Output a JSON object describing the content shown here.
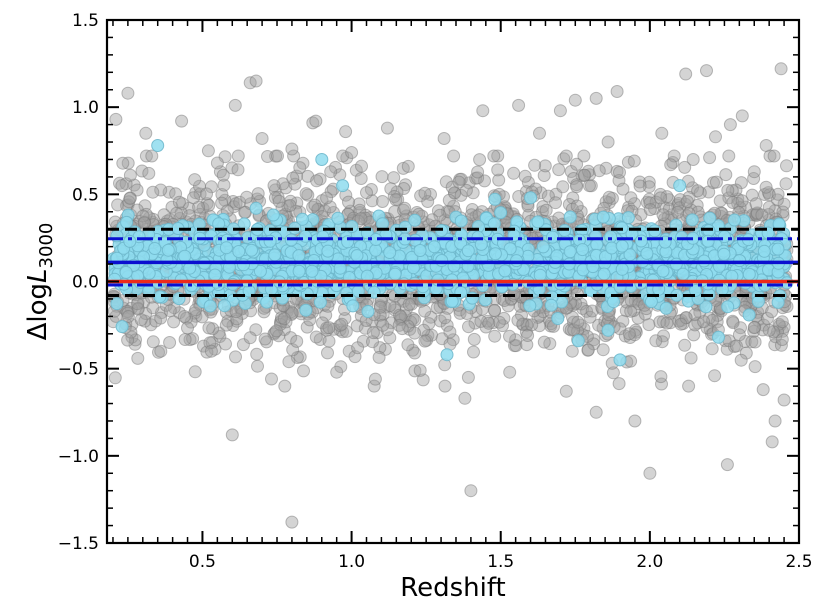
{
  "chart_data": {
    "type": "scatter",
    "title": "",
    "xlabel": "Redshift",
    "ylabel": {
      "prefix": "Δlog",
      "italic": "L",
      "subscript": "3000"
    },
    "xlim": [
      0.18,
      2.5
    ],
    "ylim": [
      -1.5,
      1.5
    ],
    "x_ticks": [
      {
        "value": 0.5,
        "label": "0.5"
      },
      {
        "value": 1.0,
        "label": "1.0"
      },
      {
        "value": 1.5,
        "label": "1.5"
      },
      {
        "value": 2.0,
        "label": "2.0"
      },
      {
        "value": 2.5,
        "label": "2.5"
      }
    ],
    "y_ticks": [
      {
        "value": -1.5,
        "label": "−1.5"
      },
      {
        "value": -1.0,
        "label": "−1.0"
      },
      {
        "value": -0.5,
        "label": "−0.5"
      },
      {
        "value": 0.0,
        "label": "0.0"
      },
      {
        "value": 0.5,
        "label": "0.5"
      },
      {
        "value": 1.0,
        "label": "1.0"
      },
      {
        "value": 1.5,
        "label": "1.5"
      }
    ],
    "grid": false,
    "legend": "none",
    "colors": {
      "all_sample": "#a0a0a0",
      "highlight_sample": "#8fdcee",
      "highlight_edge": "#6fb8cc",
      "mean_line": "#0a0fd0",
      "zero_line": "#ee2a1a",
      "dash_line": "#000000"
    },
    "series": [
      {
        "kind": "points",
        "color_key": "all_sample",
        "points": [
          [
            0.25,
            1.08
          ],
          [
            0.21,
            0.93
          ],
          [
            0.61,
            1.01
          ],
          [
            0.66,
            1.14
          ],
          [
            0.68,
            1.15
          ],
          [
            0.87,
            0.91
          ],
          [
            0.88,
            0.92
          ],
          [
            1.44,
            0.98
          ],
          [
            1.56,
            1.01
          ],
          [
            1.7,
            0.98
          ],
          [
            1.75,
            1.04
          ],
          [
            1.82,
            1.05
          ],
          [
            1.89,
            1.09
          ],
          [
            2.12,
            1.19
          ],
          [
            2.19,
            1.21
          ],
          [
            2.44,
            1.22
          ],
          [
            0.31,
            0.85
          ],
          [
            0.52,
            0.75
          ],
          [
            0.7,
            0.82
          ],
          [
            0.8,
            0.76
          ],
          [
            0.98,
            0.86
          ],
          [
            1.12,
            0.88
          ],
          [
            1.31,
            0.82
          ],
          [
            1.63,
            0.85
          ],
          [
            1.86,
            0.8
          ],
          [
            2.04,
            0.85
          ],
          [
            2.22,
            0.83
          ],
          [
            2.31,
            0.95
          ],
          [
            2.39,
            0.78
          ],
          [
            0.43,
            0.92
          ],
          [
            1.0,
            0.74
          ],
          [
            1.72,
            0.72
          ],
          [
            2.27,
            0.9
          ],
          [
            0.6,
            -0.88
          ],
          [
            0.8,
            -1.38
          ],
          [
            1.38,
            -0.67
          ],
          [
            1.4,
            -1.2
          ],
          [
            1.82,
            -0.75
          ],
          [
            1.95,
            -0.8
          ],
          [
            2.0,
            -1.1
          ],
          [
            2.26,
            -1.05
          ],
          [
            2.41,
            -0.92
          ],
          [
            2.42,
            -0.8
          ],
          [
            2.45,
            -0.68
          ],
          [
            2.38,
            -0.62
          ],
          [
            0.95,
            -0.52
          ],
          [
            1.08,
            -0.56
          ],
          [
            1.23,
            -0.51
          ],
          [
            1.53,
            -0.52
          ],
          [
            1.72,
            -0.63
          ],
          [
            2.13,
            -0.6
          ],
          [
            0.53,
            -0.4
          ],
          [
            0.79,
            -0.46
          ],
          [
            0.23,
            0.55
          ],
          [
            0.32,
            0.62
          ],
          [
            0.47,
            0.48
          ],
          [
            0.55,
            0.68
          ],
          [
            0.74,
            0.55
          ],
          [
            0.93,
            0.63
          ],
          [
            1.05,
            0.51
          ],
          [
            1.19,
            0.66
          ],
          [
            1.36,
            0.57
          ],
          [
            1.49,
            0.64
          ],
          [
            1.61,
            0.49
          ],
          [
            1.78,
            0.61
          ],
          [
            1.91,
            0.53
          ],
          [
            2.07,
            0.67
          ],
          [
            2.16,
            0.52
          ],
          [
            2.35,
            0.63
          ],
          [
            2.43,
            0.5
          ],
          [
            0.26,
            -0.29
          ],
          [
            0.39,
            -0.35
          ],
          [
            0.58,
            -0.25
          ],
          [
            0.71,
            -0.33
          ],
          [
            0.86,
            -0.22
          ],
          [
            1.02,
            -0.38
          ],
          [
            1.17,
            -0.27
          ],
          [
            1.33,
            -0.36
          ],
          [
            1.46,
            -0.24
          ],
          [
            1.59,
            -0.31
          ],
          [
            1.74,
            -0.4
          ],
          [
            1.88,
            -0.26
          ],
          [
            2.02,
            -0.34
          ],
          [
            2.18,
            -0.23
          ],
          [
            2.29,
            -0.37
          ],
          [
            2.4,
            -0.28
          ]
        ],
        "band": {
          "y_center": 0.11,
          "y_spread": 0.24,
          "count": 2600,
          "seed": 7
        }
      },
      {
        "kind": "points",
        "color_key": "highlight_sample",
        "points": [
          [
            0.35,
            0.78
          ],
          [
            0.9,
            0.7
          ],
          [
            0.97,
            0.55
          ],
          [
            1.32,
            -0.42
          ],
          [
            1.76,
            -0.34
          ],
          [
            1.9,
            -0.45
          ],
          [
            1.86,
            -0.28
          ],
          [
            2.23,
            -0.32
          ],
          [
            2.43,
            -0.12
          ],
          [
            0.68,
            0.42
          ],
          [
            1.6,
            0.48
          ],
          [
            2.1,
            0.55
          ]
        ],
        "band": {
          "y_center": 0.12,
          "y_spread": 0.11,
          "count": 1500,
          "seed": 31
        }
      }
    ],
    "lines": [
      {
        "y": 0.3,
        "style": "dashed",
        "color_key": "dash_line"
      },
      {
        "y": -0.08,
        "style": "dashed",
        "color_key": "dash_line"
      },
      {
        "y": 0.245,
        "style": "dashdot",
        "color_key": "mean_line"
      },
      {
        "y": -0.02,
        "style": "dashdot",
        "color_key": "mean_line"
      },
      {
        "y": 0.11,
        "style": "solid",
        "color_key": "mean_line"
      },
      {
        "y": 0.0,
        "style": "solid",
        "color_key": "zero_line"
      }
    ]
  }
}
